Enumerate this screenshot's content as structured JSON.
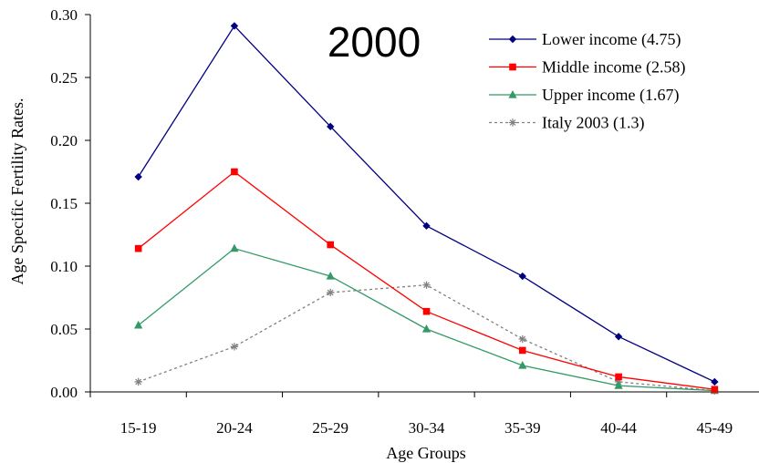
{
  "chart_data": {
    "type": "line",
    "title": "2000",
    "xlabel": "Age  Groups",
    "ylabel": "Age Specific Fertility Rates.",
    "categories": [
      "15-19",
      "20-24",
      "25-29",
      "30-34",
      "35-39",
      "40-44",
      "45-49"
    ],
    "ylim": [
      0,
      0.3
    ],
    "yticks": [
      "0.00",
      "0.05",
      "0.10",
      "0.15",
      "0.20",
      "0.25",
      "0.30"
    ],
    "ytick_values": [
      0,
      0.05,
      0.1,
      0.15,
      0.2,
      0.25,
      0.3
    ],
    "grid": false,
    "legend_position": "top-right",
    "series": [
      {
        "name": "Lower income (4.75)",
        "color": "#000080",
        "marker": "diamond",
        "dashed": false,
        "values": [
          0.171,
          0.291,
          0.211,
          0.132,
          0.092,
          0.044,
          0.008
        ]
      },
      {
        "name": "Middle income (2.58)",
        "color": "#ff0000",
        "marker": "square",
        "dashed": false,
        "values": [
          0.114,
          0.175,
          0.117,
          0.064,
          0.033,
          0.012,
          0.002
        ]
      },
      {
        "name": "Upper income (1.67)",
        "color": "#339966",
        "marker": "triangle",
        "dashed": false,
        "values": [
          0.053,
          0.114,
          0.092,
          0.05,
          0.021,
          0.005,
          0.001
        ]
      },
      {
        "name": "Italy 2003 (1.3)",
        "color": "#808080",
        "marker": "asterisk",
        "dashed": true,
        "values": [
          0.008,
          0.036,
          0.079,
          0.085,
          0.042,
          0.008,
          0.001
        ]
      }
    ]
  }
}
